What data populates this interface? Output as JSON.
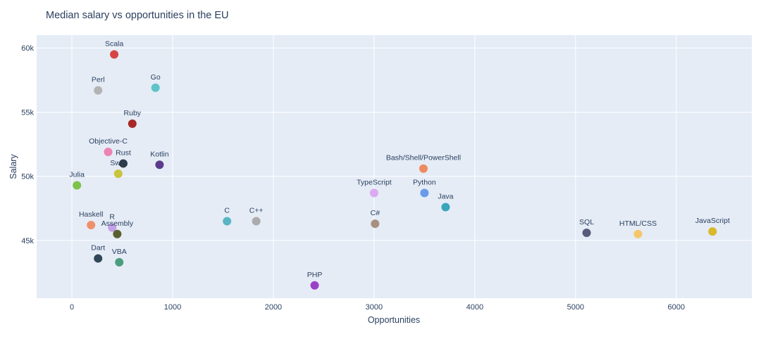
{
  "chart_data": {
    "type": "scatter",
    "title": "Median salary vs opportunities in the EU",
    "xlabel": "Opportunities",
    "ylabel": "Salary",
    "xlim": [
      -350,
      6750
    ],
    "ylim": [
      40500,
      61000
    ],
    "x_ticks": [
      0,
      1000,
      2000,
      3000,
      4000,
      5000,
      6000
    ],
    "x_tick_labels": [
      "0",
      "1000",
      "2000",
      "3000",
      "4000",
      "5000",
      "6000"
    ],
    "y_ticks": [
      45000,
      50000,
      55000,
      60000
    ],
    "y_tick_labels": [
      "45k",
      "50k",
      "55k",
      "60k"
    ],
    "grid": true,
    "points": [
      {
        "label": "Scala",
        "x": 420,
        "y": 59500,
        "color": "#d64545"
      },
      {
        "label": "Perl",
        "x": 260,
        "y": 56700,
        "color": "#b3b3b3"
      },
      {
        "label": "Go",
        "x": 830,
        "y": 56900,
        "color": "#5ec4c9"
      },
      {
        "label": "Ruby",
        "x": 600,
        "y": 54100,
        "color": "#a82828"
      },
      {
        "label": "Objective-C",
        "x": 360,
        "y": 51900,
        "color": "#ee82b4"
      },
      {
        "label": "Rust",
        "x": 510,
        "y": 51000,
        "color": "#2e3a46"
      },
      {
        "label": "Swift",
        "x": 460,
        "y": 50200,
        "color": "#c8c43c"
      },
      {
        "label": "Kotlin",
        "x": 870,
        "y": 50900,
        "color": "#5b3b8c"
      },
      {
        "label": "Julia",
        "x": 50,
        "y": 49300,
        "color": "#7ec24b"
      },
      {
        "label": "Haskell",
        "x": 190,
        "y": 46200,
        "color": "#f0906a"
      },
      {
        "label": "R",
        "x": 400,
        "y": 46000,
        "color": "#c4a2e8"
      },
      {
        "label": "Assembly",
        "x": 450,
        "y": 45500,
        "color": "#5b5f2e"
      },
      {
        "label": "Dart",
        "x": 260,
        "y": 43600,
        "color": "#2f4858"
      },
      {
        "label": "VBA",
        "x": 470,
        "y": 43300,
        "color": "#4a9e7e"
      },
      {
        "label": "C",
        "x": 1540,
        "y": 46500,
        "color": "#5ab5c2"
      },
      {
        "label": "C++",
        "x": 1830,
        "y": 46500,
        "color": "#ababab"
      },
      {
        "label": "PHP",
        "x": 2410,
        "y": 41500,
        "color": "#9b3fc9"
      },
      {
        "label": "TypeScript",
        "x": 3000,
        "y": 48700,
        "color": "#dcaaf0"
      },
      {
        "label": "C#",
        "x": 3010,
        "y": 46300,
        "color": "#a89080"
      },
      {
        "label": "Bash/Shell/PowerShell",
        "x": 3490,
        "y": 50600,
        "color": "#ee8a60"
      },
      {
        "label": "Python",
        "x": 3500,
        "y": 48700,
        "color": "#6a9be8"
      },
      {
        "label": "Java",
        "x": 3710,
        "y": 47600,
        "color": "#3aa6bc"
      },
      {
        "label": "SQL",
        "x": 5110,
        "y": 45600,
        "color": "#5a5a7a"
      },
      {
        "label": "HTML/CSS",
        "x": 5620,
        "y": 45500,
        "color": "#f4c86a"
      },
      {
        "label": "JavaScript",
        "x": 6360,
        "y": 45700,
        "color": "#d9b82a"
      }
    ]
  }
}
